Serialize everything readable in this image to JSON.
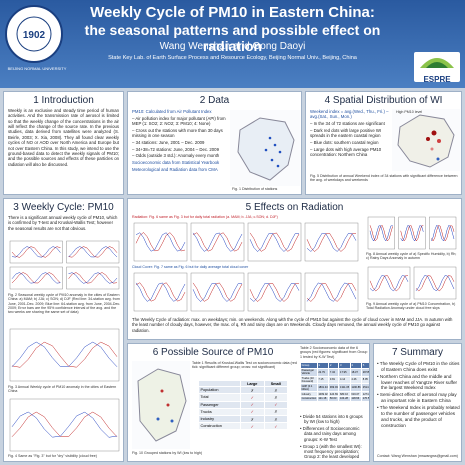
{
  "header": {
    "title": "Weekly Cycle of PM10 in Eastern China:",
    "subtitle": "the seasonal patterns and possible effect on radiation",
    "authors": "Wang Wenshan and Gong Daoyi",
    "affiliation": "State Key Lab. of Earth Surface Process and Resource Ecology, Beijing Normal Univ., Beijing, China",
    "logo_left": "BEIJING NORMAL UNIVERSITY",
    "logo_right": "ESPRE"
  },
  "intro": {
    "heading": "1 Introduction",
    "text": "Weekly is an exclusive and steady time period of human activities. And the transmission rate of aerosol is limited so that the weekly change of the concentrations in the air will reflect the change of the source rate. In the previous studies, data derived from satellites were analyzed (S. Beirle, 2003; X. Xia, 2008). They all found clear weekly cycles of NO or AOD over North America and Europe but not over Eastern China. In this study, we intend to use the ground-based data to detect the weekly signals of PM10; and the possible sources and effects of these particles on radiation will also be discussed."
  },
  "data": {
    "heading": "2 Data",
    "lines": [
      "PM10: Calculated from Air Pollutant Index",
      "– Air pollution index for major pollutant (API) from MEP (1: SO2; 2: NO2; 3: PM10; 4: None)",
      "– Cross out the stations with more than 30 days missing in one season",
      "– 34 stations: June, 2001 – Dec. 2009",
      "– 34+38=72 stations: June, 2004 – Dec. 2009",
      "– Odds (outside 3 std.): Anomaly every month",
      "Socioeconomic data from Statistical Yearbook",
      "Meteorological and Radiation data from CMA"
    ],
    "fig1": "Fig. 1 Distribution of stations"
  },
  "spatial": {
    "heading": "4 Spatial Distribution of WI",
    "lines": [
      "Weekend index = avg.(Wed., Thu., Fri.) – avg.(Sat., Sun., Mon.)",
      "– In the 34 of 72 stations are significant",
      "– Dark red dots with large positive WI spreads in the eastern coastal region",
      "– Blue dots: southern coastal region",
      "– Large dots with high average PM10 concentration: Northern China"
    ],
    "legend": "High PM10 level",
    "fig5": "Fig. 5 Distribution of annual Weekend index of 34 stations with significant difference between the avg. of weekdays and weekends"
  },
  "weekly": {
    "heading": "3 Weekly Cycle: PM10",
    "text": "There is a significant annual weekly cycle of PM10, which is confirmed by T-test and Kruskal-Wallis Test; however the seasonal results are not that obvious.",
    "fig2": "Fig. 2 Seasonal weekly cycle of PM10 anomaly in the cities of Eastern China: a) MAM; b) JJA; c) SON; d) DJF (Red line: 34-station avg. from June, 2001-Dec. 2009; Blue line: 64-station avg. from June, 2004-Dec. 2009; Error bars are the 95% confidence interval of the avg. and the two weeks are sharing the same set of data)",
    "fig3": "Fig. 3 Annual Weekly cycle of PM10 anomaly in the cities of Eastern China",
    "fig4": "Fig. 4 Same as \"Fig. 3\" but for \"dry\" visibility (cloud free)"
  },
  "radiation": {
    "heading": "5 Effects on Radiation",
    "radiation_note": "Radiation: Fig. 6 same as Fig. 3 but for daily total radiation (a. MAM; b. JJA; c.SON; d. DJF)",
    "cloud_note": "Cloud Cover: Fig. 7 same as Fig. 6 but for daily average total cloud cover",
    "fig8": "Fig. 8 Annual weekly cycle of a) Specific Humidity, b) Rh; c) Rainy Days Anomaly in autumn",
    "fig9": "Fig. 9 Annual weekly cycle of a) PM10 Concentration, b) Total Radiation Anomaly under cloud free skys",
    "text": "The Weekly Cycle of radiation: max. on weekdays; min. on weekends. Along with the cycle of PM10 but against the cycle of cloud cover in MAM and JJA. In autumn with the least number of cloudy days, however, the max. of q, Rh and rainy days are on Weekends. Cloudy days removed, the annual weekly cycle of PM10 go against radiation."
  },
  "source": {
    "heading": "6 Possible Source of PM10",
    "table1_caption": "Table 1 Results of Kruskal-Wallis Test on socioeconomic data (red tick: significant different group; cross: not significant)",
    "table1": {
      "header": [
        "Large",
        "Small"
      ],
      "rows": [
        [
          "Population",
          "✗",
          "✗"
        ],
        [
          "Total",
          "✓",
          "✗"
        ],
        [
          "Passenger",
          "✓",
          "✓"
        ],
        [
          "Trucks",
          "✓",
          "✗"
        ],
        [
          "Industry",
          "✗",
          "✗"
        ],
        [
          "Construction",
          "✓",
          "✓"
        ]
      ]
    },
    "fig10": "Fig. 10 Grouped stations by WI (low to high)",
    "table2_caption": "Table 2 Socioeconomic data of the 6 groups (red figures: significant from Group 1 tested by K-W Test)",
    "table2": {
      "header": [
        "Group",
        "1",
        "2",
        "3",
        "4",
        "5",
        "6"
      ],
      "rows": [
        [
          "Passenger Vehicle",
          "22.79",
          "7.34",
          "17.95",
          "18.37",
          "28.55",
          "20.53"
        ],
        [
          "Trucks (10 thousand)",
          "7.15",
          "0.81",
          "4.14",
          "4.26",
          "8.95",
          "5.25"
        ],
        [
          "GDP (0.1 billion)",
          "1801.43",
          "969.93",
          "1311.05",
          "1190.86",
          "2514.72",
          "2003.28"
        ],
        [
          "Industry",
          "1009.02",
          "424.69",
          "683.16",
          "619.07",
          "1274.41",
          "983.11"
        ],
        [
          "Construction",
          "121.18",
          "50.03",
          "104.28",
          "118.66",
          "170.56",
          "132.06"
        ]
      ]
    },
    "bullets": [
      "Divide 54 stations into 6 groups by WI (low to high)",
      "Differences of Socioeconomic data and rainy days among groups: K-W Test",
      "Group 1 (with the smallest WI): most frequency precipitation; Group 2: the least developed area",
      "Possible source: Vehicles and construction"
    ]
  },
  "summary": {
    "heading": "7 Summary",
    "bullets": [
      "The Weekly Cycle of PM10 in the cities of Eastern China does exist",
      "Northern China and the middle and lower reaches of Yangtze River suffer the largest Weekend Index",
      "Semi-direct effect of aerosol may play an important role in Eastern China",
      "The Weekend Index is probably related to the number of passenger vehicles and trucks, and the product of construction"
    ],
    "contact": "Contact: Wang Wenshan (mswangws@gmail.com)"
  }
}
